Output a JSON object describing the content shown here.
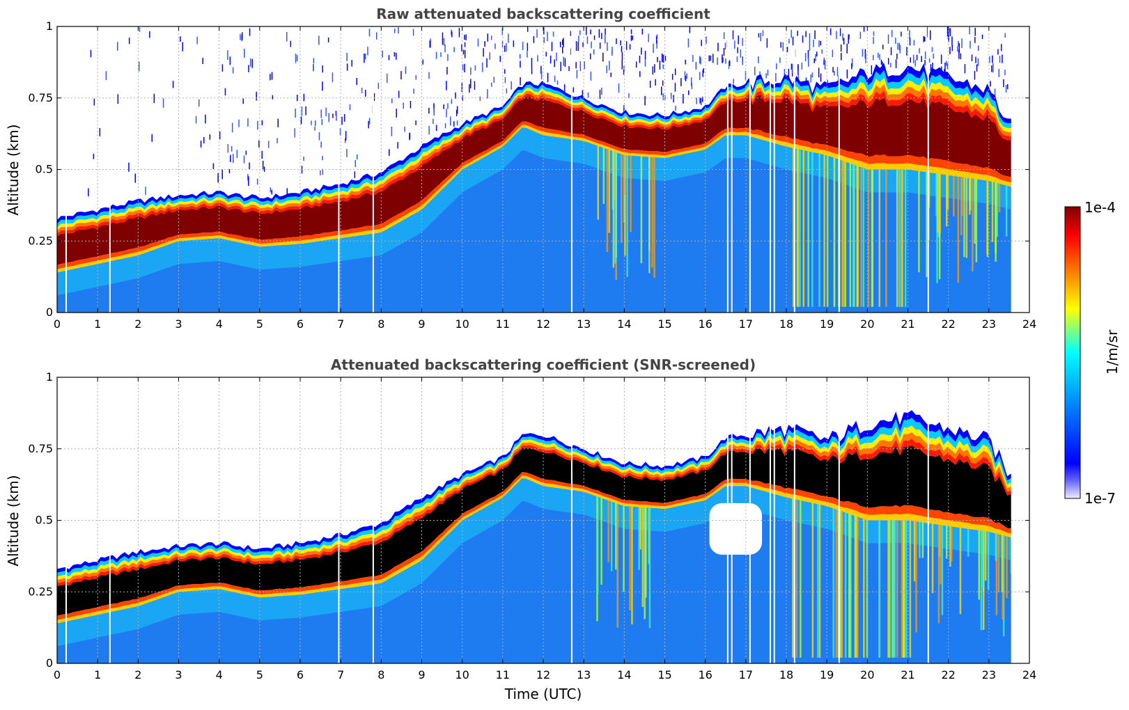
{
  "chart_data": [
    {
      "type": "heatmap",
      "title": "Raw attenuated backscattering coefficient",
      "xlabel": "",
      "ylabel": "Altitude (km)",
      "xlim": [
        0,
        24
      ],
      "ylim": [
        0,
        1
      ],
      "x_ticks": [
        "0",
        "1",
        "2",
        "3",
        "4",
        "5",
        "6",
        "7",
        "8",
        "9",
        "10",
        "11",
        "12",
        "13",
        "14",
        "15",
        "16",
        "17",
        "18",
        "19",
        "20",
        "21",
        "22",
        "23",
        "24"
      ],
      "y_ticks": [
        "0",
        "0.25",
        "0.5",
        "0.75",
        "1"
      ],
      "grid": true,
      "data_end_time": 23.55,
      "layer_top_km": [
        [
          0,
          0.33
        ],
        [
          1,
          0.36
        ],
        [
          2,
          0.39
        ],
        [
          3,
          0.41
        ],
        [
          4,
          0.42
        ],
        [
          5,
          0.4
        ],
        [
          6,
          0.42
        ],
        [
          7,
          0.45
        ],
        [
          8,
          0.49
        ],
        [
          9,
          0.58
        ],
        [
          10,
          0.66
        ],
        [
          11,
          0.72
        ],
        [
          11.5,
          0.8
        ],
        [
          12,
          0.8
        ],
        [
          13,
          0.75
        ],
        [
          14,
          0.7
        ],
        [
          15,
          0.69
        ],
        [
          16,
          0.72
        ],
        [
          16.5,
          0.79
        ],
        [
          17,
          0.8
        ],
        [
          18,
          0.82
        ],
        [
          19,
          0.78
        ],
        [
          20,
          0.84
        ],
        [
          21,
          0.86
        ],
        [
          22,
          0.82
        ],
        [
          23,
          0.78
        ],
        [
          23.55,
          0.65
        ]
      ],
      "layer_bottom_km": [
        [
          0,
          0.14
        ],
        [
          1,
          0.17
        ],
        [
          2,
          0.2
        ],
        [
          3,
          0.25
        ],
        [
          4,
          0.26
        ],
        [
          5,
          0.23
        ],
        [
          6,
          0.24
        ],
        [
          7,
          0.26
        ],
        [
          8,
          0.28
        ],
        [
          9,
          0.36
        ],
        [
          10,
          0.5
        ],
        [
          11,
          0.58
        ],
        [
          11.5,
          0.65
        ],
        [
          12,
          0.62
        ],
        [
          13,
          0.6
        ],
        [
          14,
          0.55
        ],
        [
          15,
          0.54
        ],
        [
          16,
          0.57
        ],
        [
          16.5,
          0.62
        ],
        [
          17,
          0.62
        ],
        [
          18,
          0.58
        ],
        [
          19,
          0.55
        ],
        [
          20,
          0.5
        ],
        [
          21,
          0.5
        ],
        [
          22,
          0.48
        ],
        [
          23,
          0.46
        ],
        [
          23.55,
          0.44
        ]
      ],
      "gaps_utc": [
        0.22,
        1.3,
        6.95,
        7.8,
        12.7,
        16.55,
        16.65,
        17.1,
        17.6,
        17.7,
        18.2,
        19.3,
        21.5
      ]
    },
    {
      "type": "heatmap",
      "title": "Attenuated backscattering coefficient (SNR-screened)",
      "xlabel": "Time (UTC)",
      "ylabel": "Altitude (km)",
      "xlim": [
        0,
        24
      ],
      "ylim": [
        0,
        1
      ],
      "x_ticks": [
        "0",
        "1",
        "2",
        "3",
        "4",
        "5",
        "6",
        "7",
        "8",
        "9",
        "10",
        "11",
        "12",
        "13",
        "14",
        "15",
        "16",
        "17",
        "18",
        "19",
        "20",
        "21",
        "22",
        "23",
        "24"
      ],
      "y_ticks": [
        "0",
        "0.25",
        "0.5",
        "0.75",
        "1"
      ],
      "grid": true,
      "data_end_time": 23.55,
      "layer_top_km": [
        [
          0,
          0.33
        ],
        [
          1,
          0.36
        ],
        [
          2,
          0.39
        ],
        [
          3,
          0.41
        ],
        [
          4,
          0.42
        ],
        [
          5,
          0.4
        ],
        [
          6,
          0.42
        ],
        [
          7,
          0.45
        ],
        [
          8,
          0.49
        ],
        [
          9,
          0.58
        ],
        [
          10,
          0.66
        ],
        [
          11,
          0.72
        ],
        [
          11.5,
          0.8
        ],
        [
          12,
          0.8
        ],
        [
          13,
          0.75
        ],
        [
          14,
          0.7
        ],
        [
          15,
          0.69
        ],
        [
          16,
          0.72
        ],
        [
          16.5,
          0.79
        ],
        [
          17,
          0.8
        ],
        [
          18,
          0.82
        ],
        [
          19,
          0.78
        ],
        [
          20,
          0.84
        ],
        [
          21,
          0.86
        ],
        [
          22,
          0.82
        ],
        [
          23,
          0.78
        ],
        [
          23.55,
          0.65
        ]
      ],
      "layer_bottom_km": [
        [
          0,
          0.14
        ],
        [
          1,
          0.17
        ],
        [
          2,
          0.2
        ],
        [
          3,
          0.25
        ],
        [
          4,
          0.26
        ],
        [
          5,
          0.23
        ],
        [
          6,
          0.24
        ],
        [
          7,
          0.26
        ],
        [
          8,
          0.28
        ],
        [
          9,
          0.36
        ],
        [
          10,
          0.5
        ],
        [
          11,
          0.58
        ],
        [
          11.5,
          0.65
        ],
        [
          12,
          0.62
        ],
        [
          13,
          0.6
        ],
        [
          14,
          0.55
        ],
        [
          15,
          0.54
        ],
        [
          16,
          0.57
        ],
        [
          16.5,
          0.62
        ],
        [
          17,
          0.62
        ],
        [
          18,
          0.58
        ],
        [
          19,
          0.55
        ],
        [
          20,
          0.5
        ],
        [
          21,
          0.5
        ],
        [
          22,
          0.48
        ],
        [
          23,
          0.46
        ],
        [
          23.55,
          0.44
        ]
      ],
      "gaps_utc": [
        0.22,
        1.3,
        6.95,
        7.8,
        12.7,
        16.55,
        16.65,
        17.1,
        17.6,
        17.7,
        18.2,
        19.3,
        21.5
      ],
      "masked_region": {
        "t0": 16.1,
        "t1": 17.4,
        "alt0": 0.38,
        "alt1": 0.56
      }
    }
  ],
  "colorbar": {
    "label": "1/m/sr",
    "max_label": "1e-4",
    "min_label": "1e-7",
    "scale": "log",
    "range": [
      1e-07,
      0.0001
    ]
  },
  "colors": {
    "background": "#ffffff",
    "grid": "#b0b0b0",
    "title": "#444444",
    "layer_core_raw": "#7f0000",
    "layer_core_screened": "#000000",
    "ground_blue": "#1f7cf0"
  }
}
